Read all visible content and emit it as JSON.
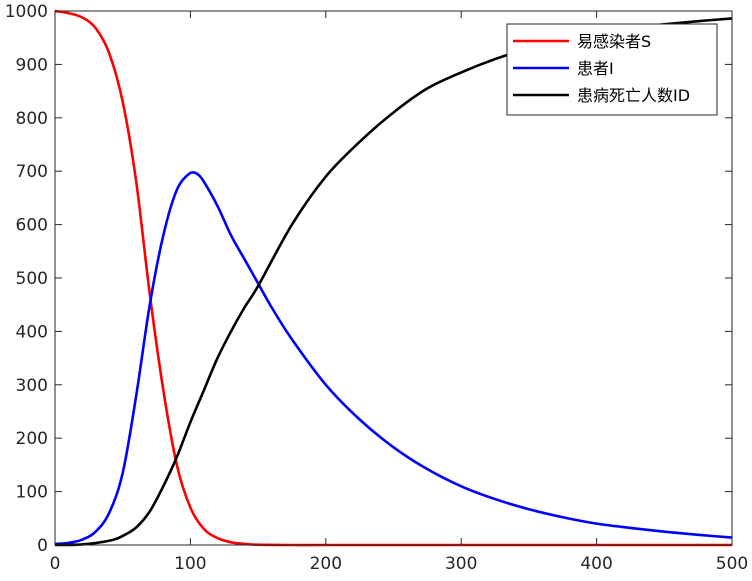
{
  "chart_data": {
    "type": "line",
    "title": "",
    "xlabel": "",
    "ylabel": "",
    "xlim": [
      0,
      500
    ],
    "ylim": [
      0,
      1000
    ],
    "xticks": [
      0,
      100,
      200,
      300,
      400,
      500
    ],
    "yticks": [
      0,
      100,
      200,
      300,
      400,
      500,
      600,
      700,
      800,
      900,
      1000
    ],
    "grid": false,
    "legend_position": "top-right",
    "series": [
      {
        "name": "易感染者S",
        "color": "#ff0000",
        "x": [
          0,
          10,
          20,
          30,
          40,
          50,
          60,
          70,
          80,
          90,
          100,
          110,
          120,
          130,
          140,
          150,
          175,
          200,
          250,
          300,
          350,
          400,
          450,
          500
        ],
        "y": [
          1000,
          996,
          988,
          968,
          921,
          830,
          680,
          470,
          290,
          150,
          70,
          30,
          13,
          5,
          2,
          0.5,
          0,
          0,
          0,
          0,
          0,
          0,
          0,
          0
        ]
      },
      {
        "name": "患者I",
        "color": "#0000ff",
        "x": [
          0,
          10,
          20,
          30,
          40,
          50,
          60,
          70,
          80,
          90,
          100,
          105,
          110,
          120,
          130,
          140,
          150,
          160,
          175,
          200,
          225,
          250,
          275,
          300,
          325,
          350,
          375,
          400,
          425,
          450,
          475,
          500
        ],
        "y": [
          2,
          4,
          10,
          25,
          60,
          135,
          280,
          450,
          580,
          665,
          697,
          695,
          680,
          635,
          580,
          535,
          490,
          445,
          385,
          300,
          235,
          183,
          142,
          110,
          86,
          67,
          52,
          40,
          32,
          25,
          19,
          14
        ]
      },
      {
        "name": "患病死亡人数ID",
        "color": "#000000",
        "x": [
          0,
          20,
          40,
          50,
          60,
          70,
          80,
          90,
          100,
          110,
          120,
          130,
          140,
          150,
          175,
          200,
          225,
          250,
          275,
          300,
          325,
          350,
          375,
          400,
          425,
          450,
          475,
          500
        ],
        "y": [
          0,
          1,
          8,
          17,
          33,
          63,
          110,
          165,
          230,
          290,
          350,
          400,
          445,
          485,
          600,
          690,
          755,
          810,
          855,
          885,
          910,
          930,
          945,
          958,
          968,
          975,
          981,
          986
        ]
      }
    ]
  }
}
